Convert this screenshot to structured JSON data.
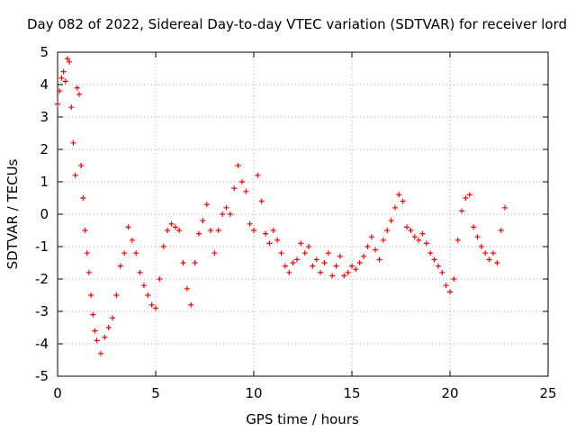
{
  "chart_data": {
    "type": "scatter",
    "title": "Day 082 of 2022, Sidereal Day-to-day VTEC variation (SDTVAR) for receiver lord",
    "xlabel": "GPS time / hours",
    "ylabel": "SDTVAR / TECUs",
    "xlim": [
      0,
      25
    ],
    "ylim": [
      -5,
      5
    ],
    "xticks": [
      0,
      5,
      10,
      15,
      20,
      25
    ],
    "yticks": [
      -5,
      -4,
      -3,
      -2,
      -1,
      0,
      1,
      2,
      3,
      4,
      5
    ],
    "grid": true,
    "marker": "+",
    "color": "#ff0000",
    "series": [
      {
        "name": "SDTVAR",
        "x": [
          0.0,
          0.1,
          0.2,
          0.3,
          0.4,
          0.5,
          0.6,
          0.7,
          0.8,
          0.9,
          1.0,
          1.1,
          1.2,
          1.3,
          1.4,
          1.5,
          1.6,
          1.7,
          1.8,
          1.9,
          2.0,
          2.2,
          2.4,
          2.6,
          2.8,
          3.0,
          3.2,
          3.4,
          3.6,
          3.8,
          4.0,
          4.2,
          4.4,
          4.6,
          4.8,
          5.0,
          5.2,
          5.4,
          5.6,
          5.8,
          6.0,
          6.2,
          6.4,
          6.6,
          6.8,
          7.0,
          7.2,
          7.4,
          7.6,
          7.8,
          8.0,
          8.2,
          8.4,
          8.6,
          8.8,
          9.0,
          9.2,
          9.4,
          9.6,
          9.8,
          10.0,
          10.2,
          10.4,
          10.6,
          10.8,
          11.0,
          11.2,
          11.4,
          11.6,
          11.8,
          12.0,
          12.2,
          12.4,
          12.6,
          12.8,
          13.0,
          13.2,
          13.4,
          13.6,
          13.8,
          14.0,
          14.2,
          14.4,
          14.6,
          14.8,
          15.0,
          15.2,
          15.4,
          15.6,
          15.8,
          16.0,
          16.2,
          16.4,
          16.6,
          16.8,
          17.0,
          17.2,
          17.4,
          17.6,
          17.8,
          18.0,
          18.2,
          18.4,
          18.6,
          18.8,
          19.0,
          19.2,
          19.4,
          19.6,
          19.8,
          20.0,
          20.2,
          20.4,
          20.6,
          20.8,
          21.0,
          21.2,
          21.4,
          21.6,
          21.8,
          22.0,
          22.2,
          22.4,
          22.6,
          22.8
        ],
        "y": [
          3.4,
          3.8,
          4.2,
          4.4,
          4.1,
          4.8,
          4.7,
          3.3,
          2.2,
          1.2,
          3.9,
          3.7,
          1.5,
          0.5,
          -0.5,
          -1.2,
          -1.8,
          -2.5,
          -3.1,
          -3.6,
          -3.9,
          -4.3,
          -3.8,
          -3.5,
          -3.2,
          -2.5,
          -1.6,
          -1.2,
          -0.4,
          -0.8,
          -1.2,
          -1.8,
          -2.2,
          -2.5,
          -2.8,
          -2.9,
          -2.0,
          -1.0,
          -0.5,
          -0.3,
          -0.4,
          -0.5,
          -1.5,
          -2.3,
          -2.8,
          -1.5,
          -0.6,
          -0.2,
          0.3,
          -0.5,
          -1.2,
          -0.5,
          0.0,
          0.2,
          0.0,
          0.8,
          1.5,
          1.0,
          0.7,
          -0.3,
          -0.5,
          1.2,
          0.4,
          -0.6,
          -0.9,
          -0.5,
          -0.8,
          -1.2,
          -1.6,
          -1.8,
          -1.5,
          -1.4,
          -0.9,
          -1.2,
          -1.0,
          -1.6,
          -1.4,
          -1.8,
          -1.5,
          -1.2,
          -1.9,
          -1.6,
          -1.3,
          -1.9,
          -1.8,
          -1.6,
          -1.7,
          -1.5,
          -1.3,
          -1.0,
          -0.7,
          -1.1,
          -1.4,
          -0.8,
          -0.5,
          -0.2,
          0.2,
          0.6,
          0.4,
          -0.4,
          -0.5,
          -0.7,
          -0.8,
          -0.6,
          -0.9,
          -1.2,
          -1.4,
          -1.6,
          -1.8,
          -2.2,
          -2.4,
          -2.0,
          -0.8,
          0.1,
          0.5,
          0.6,
          -0.4,
          -0.7,
          -1.0,
          -1.2,
          -1.4,
          -1.2,
          -1.5,
          -0.5,
          0.2
        ]
      }
    ]
  }
}
